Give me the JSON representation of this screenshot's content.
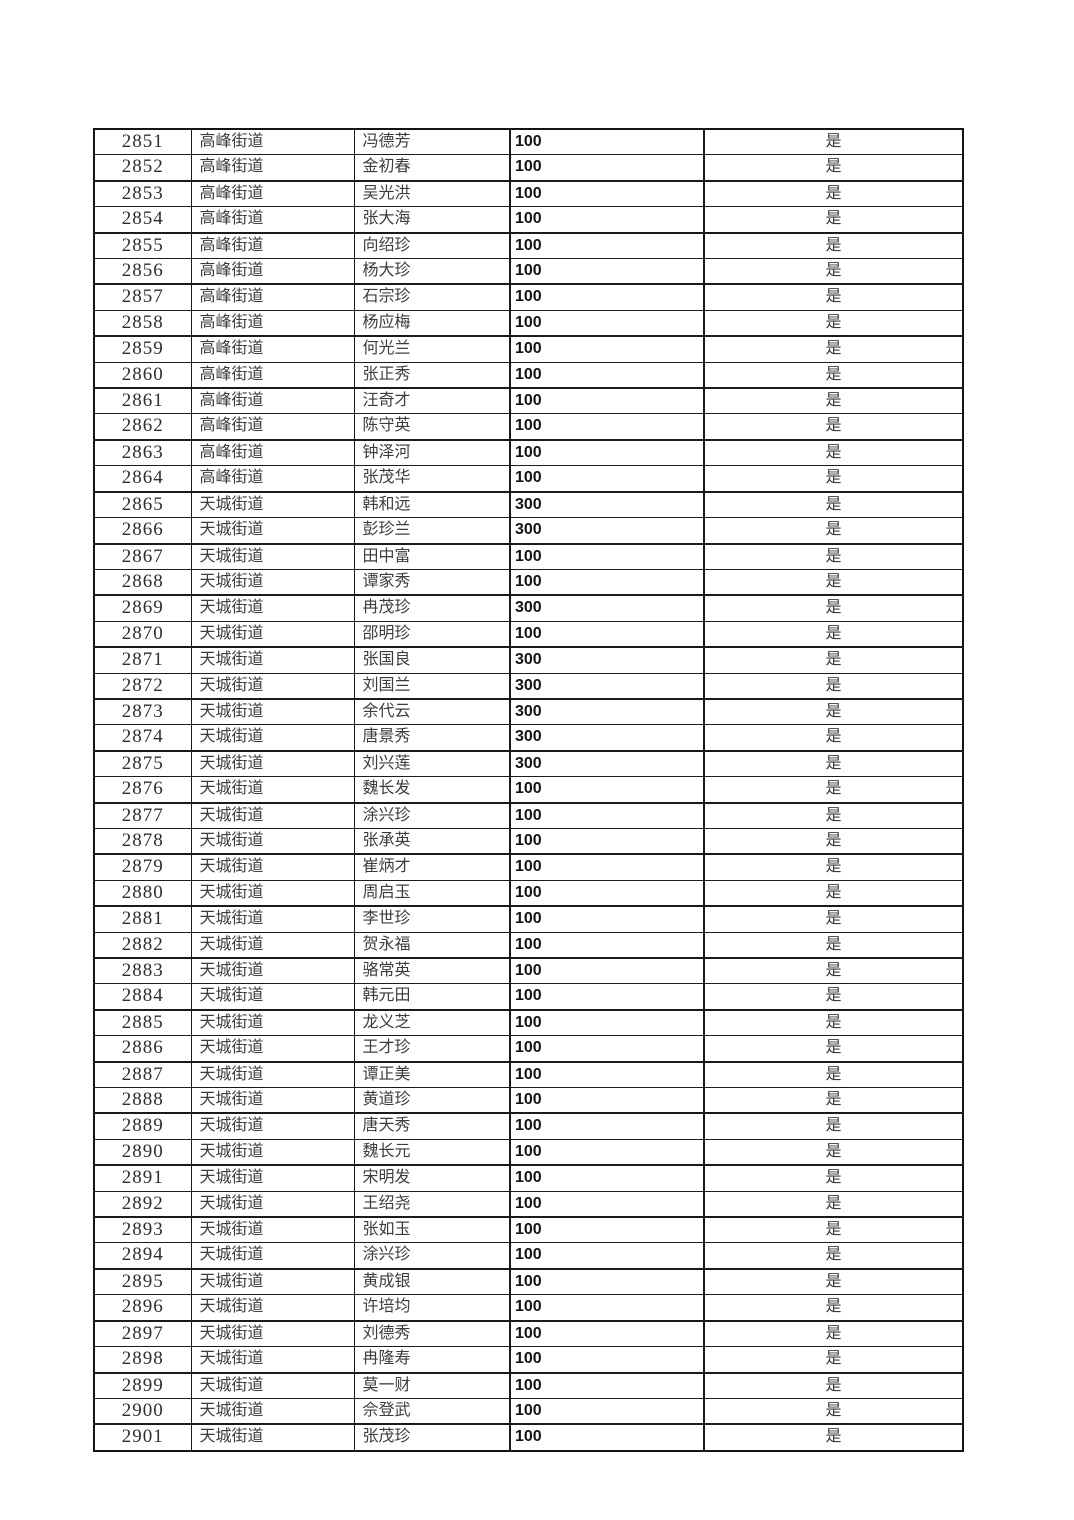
{
  "colors": {
    "background": "#ffffff",
    "border": "#141414",
    "text": "#3c3c3c"
  },
  "table": {
    "columns": [
      {
        "key": "serial"
      },
      {
        "key": "street"
      },
      {
        "key": "name"
      },
      {
        "key": "amount"
      },
      {
        "key": "confirm"
      }
    ],
    "rows": [
      [
        "2851",
        "高峰街道",
        "冯德芳",
        "100",
        "是"
      ],
      [
        "2852",
        "高峰街道",
        "金初春",
        "100",
        "是"
      ],
      [
        "2853",
        "高峰街道",
        "吴光洪",
        "100",
        "是"
      ],
      [
        "2854",
        "高峰街道",
        "张大海",
        "100",
        "是"
      ],
      [
        "2855",
        "高峰街道",
        "向绍珍",
        "100",
        "是"
      ],
      [
        "2856",
        "高峰街道",
        "杨大珍",
        "100",
        "是"
      ],
      [
        "2857",
        "高峰街道",
        "石宗珍",
        "100",
        "是"
      ],
      [
        "2858",
        "高峰街道",
        "杨应梅",
        "100",
        "是"
      ],
      [
        "2859",
        "高峰街道",
        "何光兰",
        "100",
        "是"
      ],
      [
        "2860",
        "高峰街道",
        "张正秀",
        "100",
        "是"
      ],
      [
        "2861",
        "高峰街道",
        "汪奇才",
        "100",
        "是"
      ],
      [
        "2862",
        "高峰街道",
        "陈守英",
        "100",
        "是"
      ],
      [
        "2863",
        "高峰街道",
        "钟泽河",
        "100",
        "是"
      ],
      [
        "2864",
        "高峰街道",
        "张茂华",
        "100",
        "是"
      ],
      [
        "2865",
        "天城街道",
        "韩和远",
        "300",
        "是"
      ],
      [
        "2866",
        "天城街道",
        "彭珍兰",
        "300",
        "是"
      ],
      [
        "2867",
        "天城街道",
        "田中富",
        "100",
        "是"
      ],
      [
        "2868",
        "天城街道",
        "谭家秀",
        "100",
        "是"
      ],
      [
        "2869",
        "天城街道",
        "冉茂珍",
        "300",
        "是"
      ],
      [
        "2870",
        "天城街道",
        "邵明珍",
        "100",
        "是"
      ],
      [
        "2871",
        "天城街道",
        "张国良",
        "300",
        "是"
      ],
      [
        "2872",
        "天城街道",
        "刘国兰",
        "300",
        "是"
      ],
      [
        "2873",
        "天城街道",
        "余代云",
        "300",
        "是"
      ],
      [
        "2874",
        "天城街道",
        "唐景秀",
        "300",
        "是"
      ],
      [
        "2875",
        "天城街道",
        "刘兴莲",
        "300",
        "是"
      ],
      [
        "2876",
        "天城街道",
        "魏长发",
        "100",
        "是"
      ],
      [
        "2877",
        "天城街道",
        "涂兴珍",
        "100",
        "是"
      ],
      [
        "2878",
        "天城街道",
        "张承英",
        "100",
        "是"
      ],
      [
        "2879",
        "天城街道",
        "崔炳才",
        "100",
        "是"
      ],
      [
        "2880",
        "天城街道",
        "周启玉",
        "100",
        "是"
      ],
      [
        "2881",
        "天城街道",
        "李世珍",
        "100",
        "是"
      ],
      [
        "2882",
        "天城街道",
        "贺永福",
        "100",
        "是"
      ],
      [
        "2883",
        "天城街道",
        "骆常英",
        "100",
        "是"
      ],
      [
        "2884",
        "天城街道",
        "韩元田",
        "100",
        "是"
      ],
      [
        "2885",
        "天城街道",
        "龙义芝",
        "100",
        "是"
      ],
      [
        "2886",
        "天城街道",
        "王才珍",
        "100",
        "是"
      ],
      [
        "2887",
        "天城街道",
        "谭正美",
        "100",
        "是"
      ],
      [
        "2888",
        "天城街道",
        "黄道珍",
        "100",
        "是"
      ],
      [
        "2889",
        "天城街道",
        "唐天秀",
        "100",
        "是"
      ],
      [
        "2890",
        "天城街道",
        "魏长元",
        "100",
        "是"
      ],
      [
        "2891",
        "天城街道",
        "宋明发",
        "100",
        "是"
      ],
      [
        "2892",
        "天城街道",
        "王绍尧",
        "100",
        "是"
      ],
      [
        "2893",
        "天城街道",
        "张如玉",
        "100",
        "是"
      ],
      [
        "2894",
        "天城街道",
        "涂兴珍",
        "100",
        "是"
      ],
      [
        "2895",
        "天城街道",
        "黄成银",
        "100",
        "是"
      ],
      [
        "2896",
        "天城街道",
        "许培均",
        "100",
        "是"
      ],
      [
        "2897",
        "天城街道",
        "刘德秀",
        "100",
        "是"
      ],
      [
        "2898",
        "天城街道",
        "冉隆寿",
        "100",
        "是"
      ],
      [
        "2899",
        "天城街道",
        "莫一财",
        "100",
        "是"
      ],
      [
        "2900",
        "天城街道",
        "佘登武",
        "100",
        "是"
      ],
      [
        "2901",
        "天城街道",
        "张茂珍",
        "100",
        "是"
      ]
    ]
  }
}
